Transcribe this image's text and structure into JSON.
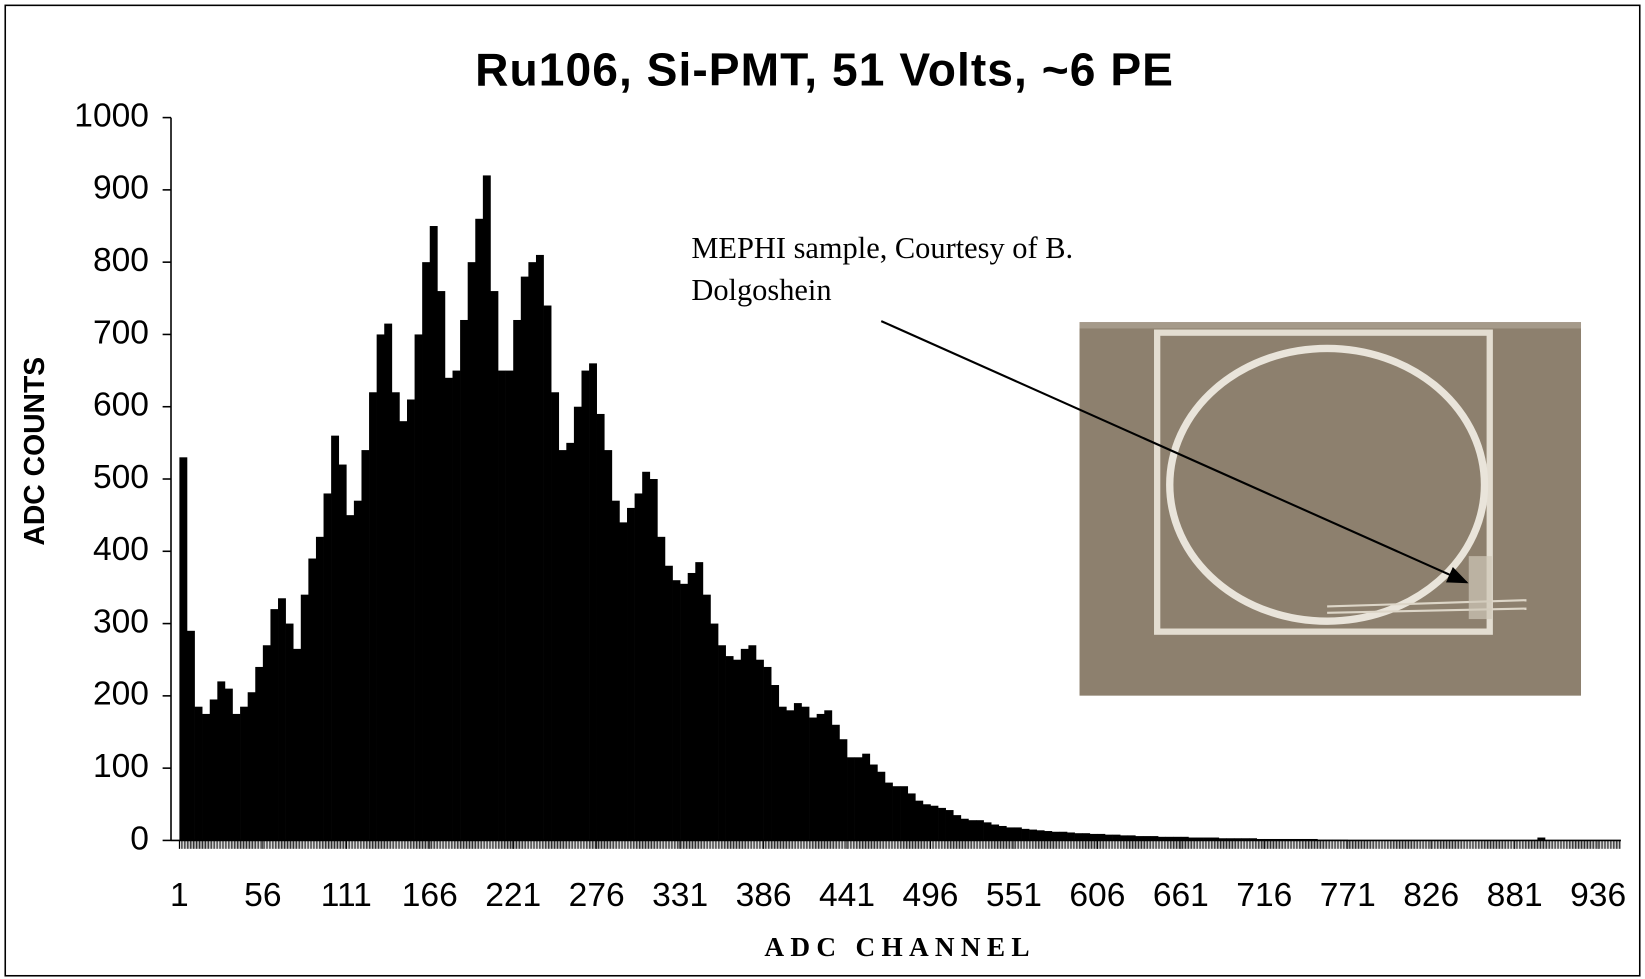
{
  "chart_data": {
    "type": "histogram",
    "title": "Ru106, Si-PMT,  51 Volts, ~6 PE",
    "x_label": "ADC CHANNEL",
    "y_label": "ADC COUNTS",
    "annotation": [
      "MEPHI sample, Courtesy of B.",
      "Dolgoshein"
    ],
    "color": "#000000",
    "bins": [
      1,
      6,
      11,
      16,
      21,
      26,
      31,
      36,
      41,
      46,
      51,
      56,
      61,
      66,
      71,
      76,
      81,
      86,
      91,
      96,
      101,
      106,
      111,
      116,
      121,
      126,
      131,
      136,
      141,
      146,
      151,
      156,
      161,
      166,
      171,
      176,
      181,
      186,
      191,
      196,
      201,
      206,
      211,
      216,
      221,
      226,
      231,
      236,
      241,
      246,
      251,
      256,
      261,
      266,
      271,
      276,
      281,
      286,
      291,
      296,
      301,
      306,
      311,
      316,
      321,
      326,
      331,
      336,
      341,
      346,
      351,
      356,
      361,
      366,
      371,
      376,
      381,
      386,
      391,
      396,
      401,
      406,
      411,
      416,
      421,
      426,
      431,
      436,
      441,
      446,
      451,
      456,
      461,
      466,
      471,
      476,
      481,
      486,
      491,
      496,
      501,
      506,
      511,
      516,
      521,
      526,
      531,
      536,
      541,
      546,
      551,
      556,
      561,
      566,
      571,
      576,
      581,
      586,
      591,
      596,
      601,
      606,
      611,
      616,
      621,
      626,
      631,
      636,
      641,
      646,
      651,
      656,
      661,
      666,
      671,
      676,
      681,
      686,
      691,
      696,
      701,
      706,
      711,
      716,
      721,
      726,
      731,
      736,
      741,
      746,
      751,
      756,
      761,
      766,
      771,
      776,
      781,
      786,
      791,
      796,
      801,
      806,
      811,
      816,
      821,
      826,
      831,
      836,
      841,
      846,
      851,
      856,
      861,
      866,
      871,
      876,
      881,
      886,
      891,
      896,
      901,
      906,
      911,
      916,
      921,
      926,
      931,
      936,
      941,
      946,
      951
    ],
    "values": [
      530,
      290,
      185,
      175,
      195,
      220,
      210,
      175,
      185,
      205,
      240,
      270,
      320,
      335,
      300,
      265,
      340,
      390,
      420,
      480,
      560,
      520,
      450,
      470,
      540,
      620,
      700,
      715,
      620,
      580,
      610,
      700,
      800,
      850,
      760,
      640,
      650,
      720,
      800,
      860,
      920,
      760,
      650,
      650,
      720,
      780,
      800,
      810,
      740,
      620,
      540,
      550,
      600,
      650,
      660,
      590,
      540,
      470,
      440,
      460,
      480,
      510,
      500,
      420,
      380,
      360,
      355,
      370,
      385,
      340,
      300,
      270,
      255,
      250,
      265,
      270,
      250,
      240,
      215,
      185,
      180,
      190,
      185,
      170,
      175,
      180,
      160,
      140,
      115,
      115,
      120,
      105,
      95,
      80,
      75,
      75,
      65,
      55,
      50,
      48,
      45,
      42,
      35,
      30,
      28,
      28,
      25,
      22,
      20,
      18,
      18,
      16,
      15,
      14,
      13,
      12,
      12,
      11,
      10,
      10,
      9,
      9,
      8,
      8,
      7,
      7,
      6,
      6,
      6,
      5,
      5,
      5,
      5,
      4,
      4,
      4,
      4,
      3,
      3,
      3,
      3,
      3,
      2,
      2,
      2,
      2,
      2,
      2,
      2,
      2,
      1,
      1,
      1,
      1,
      0,
      0,
      0,
      0,
      0,
      0,
      0,
      0,
      0,
      0,
      0,
      0,
      0,
      0,
      0,
      0,
      0,
      0,
      0,
      0,
      0,
      0,
      0,
      0,
      0,
      4,
      0,
      0,
      0,
      0,
      0,
      0,
      0,
      0,
      0,
      0
    ],
    "xlim": [
      1,
      951
    ],
    "xticks": [
      1,
      56,
      111,
      166,
      221,
      276,
      331,
      386,
      441,
      496,
      551,
      606,
      661,
      716,
      771,
      826,
      881,
      936
    ],
    "ylim": [
      0,
      1000
    ],
    "yticks": [
      0,
      100,
      200,
      300,
      400,
      500,
      600,
      700,
      800,
      900,
      1000
    ]
  }
}
